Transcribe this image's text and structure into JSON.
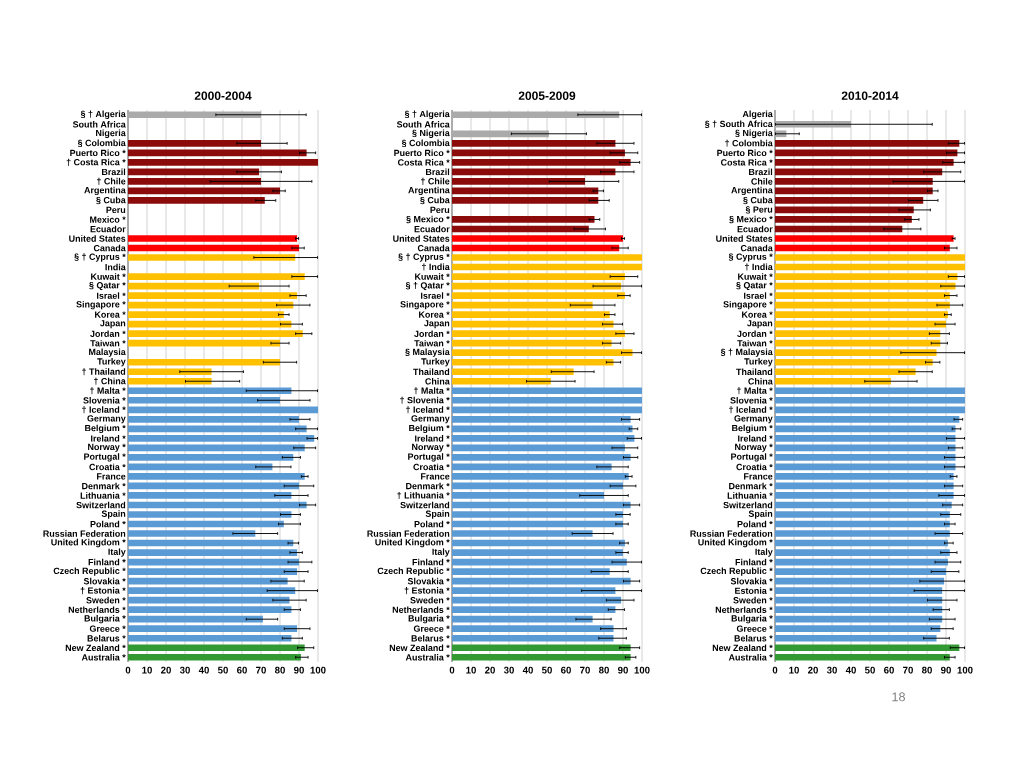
{
  "chart_data": [
    {
      "type": "bar",
      "orientation": "horizontal",
      "title": "2000-2004",
      "grid": "x",
      "xlim": [
        0,
        100
      ],
      "xticks": [
        0,
        10,
        20,
        30,
        40,
        50,
        60,
        70,
        80,
        90,
        100
      ],
      "categories": [
        "§ † Algeria",
        "South Africa",
        "Nigeria",
        "§  Colombia",
        "Puerto Rico *",
        "† Costa Rica *",
        "Brazil",
        "† Chile",
        "Argentina",
        "§  Cuba",
        "Peru",
        "Mexico *",
        "Ecuador",
        "United States",
        "Canada",
        "§ † Cyprus *",
        "India",
        "Kuwait *",
        "§  Qatar *",
        "Israel *",
        "Singapore *",
        "Korea *",
        "Japan",
        "Jordan *",
        "Taiwan *",
        "Malaysia",
        "Turkey",
        "† Thailand",
        "† China",
        "† Malta *",
        "Slovenia *",
        "† Iceland *",
        "Germany",
        "Belgium *",
        "Ireland *",
        "Norway *",
        "Portugal *",
        "Croatia *",
        "France",
        "Denmark *",
        "Lithuania *",
        "Switzerland",
        "Spain",
        "Poland *",
        "Russian Federation",
        "United Kingdom *",
        "Italy",
        "Finland *",
        "Czech Republic *",
        "Slovakia *",
        "† Estonia *",
        "Sweden *",
        "Netherlands *",
        "Bulgaria *",
        "Greece *",
        "Belarus *",
        "New Zealand *",
        "Australia *"
      ],
      "values": [
        70,
        null,
        null,
        70,
        94,
        100,
        69,
        70,
        80,
        72,
        null,
        null,
        null,
        89,
        90,
        88,
        null,
        93,
        69,
        89,
        87,
        82,
        86,
        92,
        80,
        null,
        80,
        44,
        44,
        86,
        80,
        100,
        90,
        94,
        98,
        93,
        87,
        76,
        93,
        90,
        86,
        94,
        86,
        82,
        67,
        87,
        89,
        90,
        89,
        84,
        88,
        85,
        86,
        71,
        89,
        86,
        93,
        91
      ],
      "errors": [
        [
          46,
          94
        ],
        null,
        null,
        [
          57,
          84
        ],
        [
          90,
          99
        ],
        null,
        [
          57,
          81
        ],
        [
          43,
          97
        ],
        [
          76,
          83
        ],
        [
          67,
          78
        ],
        null,
        null,
        null,
        [
          88,
          90
        ],
        [
          86,
          93
        ],
        [
          66,
          100
        ],
        null,
        [
          86,
          100
        ],
        [
          53,
          85
        ],
        [
          85,
          94
        ],
        [
          78,
          96
        ],
        [
          79,
          85
        ],
        [
          80,
          92
        ],
        [
          88,
          97
        ],
        [
          75,
          85
        ],
        null,
        [
          71,
          89
        ],
        [
          27,
          61
        ],
        [
          30,
          59
        ],
        [
          62,
          100
        ],
        [
          68,
          96
        ],
        null,
        [
          85,
          96
        ],
        [
          88,
          100
        ],
        [
          94,
          100
        ],
        [
          87,
          99
        ],
        [
          81,
          91
        ],
        [
          67,
          86
        ],
        [
          91,
          95
        ],
        [
          82,
          98
        ],
        [
          77,
          95
        ],
        [
          90,
          99
        ],
        [
          80,
          91
        ],
        [
          79,
          91
        ],
        [
          55,
          79
        ],
        [
          84,
          90
        ],
        [
          85,
          92
        ],
        [
          84,
          97
        ],
        [
          82,
          95
        ],
        [
          75,
          93
        ],
        [
          73,
          100
        ],
        [
          76,
          94
        ],
        [
          82,
          91
        ],
        [
          62,
          79
        ],
        [
          82,
          96
        ],
        [
          81,
          92
        ],
        [
          89,
          98
        ],
        [
          88,
          95
        ]
      ],
      "colors": [
        "#aaaaaa",
        "#aaaaaa",
        "#aaaaaa",
        "#8b0a0a",
        "#8b0a0a",
        "#8b0a0a",
        "#8b0a0a",
        "#8b0a0a",
        "#8b0a0a",
        "#8b0a0a",
        "#8b0a0a",
        "#8b0a0a",
        "#8b0a0a",
        "#ff0000",
        "#ff0000",
        "#ffc000",
        "#ffc000",
        "#ffc000",
        "#ffc000",
        "#ffc000",
        "#ffc000",
        "#ffc000",
        "#ffc000",
        "#ffc000",
        "#ffc000",
        "#ffc000",
        "#ffc000",
        "#ffc000",
        "#ffc000",
        "#5b9bd5",
        "#5b9bd5",
        "#5b9bd5",
        "#5b9bd5",
        "#5b9bd5",
        "#5b9bd5",
        "#5b9bd5",
        "#5b9bd5",
        "#5b9bd5",
        "#5b9bd5",
        "#5b9bd5",
        "#5b9bd5",
        "#5b9bd5",
        "#5b9bd5",
        "#5b9bd5",
        "#5b9bd5",
        "#5b9bd5",
        "#5b9bd5",
        "#5b9bd5",
        "#5b9bd5",
        "#5b9bd5",
        "#5b9bd5",
        "#5b9bd5",
        "#5b9bd5",
        "#5b9bd5",
        "#5b9bd5",
        "#5b9bd5",
        "#339933",
        "#339933"
      ]
    },
    {
      "type": "bar",
      "orientation": "horizontal",
      "title": "2005-2009",
      "grid": "x",
      "xlim": [
        0,
        100
      ],
      "xticks": [
        0,
        10,
        20,
        30,
        40,
        50,
        60,
        70,
        80,
        90,
        100
      ],
      "categories": [
        "§ † Algeria",
        "South Africa",
        "§  Nigeria",
        "§  Colombia",
        "Puerto Rico *",
        "Costa Rica *",
        "Brazil",
        "† Chile",
        "Argentina",
        "§  Cuba",
        "Peru",
        "§  Mexico *",
        "Ecuador",
        "United States",
        "Canada",
        "§ † Cyprus *",
        "† India",
        "Kuwait *",
        "§ † Qatar *",
        "Israel *",
        "Singapore *",
        "Korea *",
        "Japan",
        "Jordan *",
        "Taiwan *",
        "§  Malaysia",
        "Turkey",
        "Thailand",
        "China",
        "† Malta *",
        "† Slovenia *",
        "† Iceland *",
        "Germany",
        "Belgium *",
        "Ireland *",
        "Norway *",
        "Portugal *",
        "Croatia *",
        "France",
        "Denmark *",
        "† Lithuania *",
        "Switzerland",
        "Spain",
        "Poland *",
        "Russian Federation",
        "United Kingdom *",
        "Italy",
        "Finland *",
        "Czech Republic *",
        "Slovakia *",
        "† Estonia *",
        "Sweden *",
        "Netherlands *",
        "Bulgaria *",
        "Greece *",
        "Belarus *",
        "New Zealand *",
        "Australia *"
      ],
      "values": [
        88,
        null,
        51,
        86,
        91,
        94,
        86,
        70,
        77,
        77,
        null,
        75,
        72,
        90,
        88,
        100,
        100,
        91,
        89,
        91,
        74,
        83,
        85,
        91,
        84,
        95,
        85,
        64,
        52,
        100,
        100,
        100,
        94,
        95,
        96,
        91,
        94,
        84,
        93,
        90,
        80,
        94,
        90,
        90,
        74,
        91,
        90,
        92,
        83,
        94,
        86,
        89,
        86,
        74,
        85,
        85,
        94,
        94
      ],
      "errors": [
        [
          66,
          100
        ],
        null,
        [
          31,
          71
        ],
        [
          76,
          96
        ],
        [
          83,
          98
        ],
        [
          88,
          99
        ],
        [
          78,
          96
        ],
        [
          51,
          88
        ],
        [
          74,
          80
        ],
        [
          72,
          83
        ],
        null,
        [
          72,
          78
        ],
        [
          64,
          81
        ],
        [
          89,
          91
        ],
        [
          84,
          93
        ],
        null,
        null,
        [
          83,
          98
        ],
        [
          74,
          100
        ],
        [
          87,
          94
        ],
        [
          62,
          86
        ],
        [
          80,
          86
        ],
        [
          79,
          90
        ],
        [
          86,
          96
        ],
        [
          79,
          89
        ],
        [
          89,
          100
        ],
        [
          81,
          89
        ],
        [
          52,
          75
        ],
        [
          39,
          65
        ],
        null,
        null,
        null,
        [
          89,
          99
        ],
        [
          93,
          98
        ],
        [
          92,
          100
        ],
        [
          84,
          98
        ],
        [
          90,
          98
        ],
        [
          76,
          93
        ],
        [
          91,
          95
        ],
        [
          83,
          97
        ],
        [
          67,
          93
        ],
        [
          90,
          99
        ],
        [
          86,
          94
        ],
        [
          86,
          93
        ],
        [
          63,
          85
        ],
        [
          88,
          93
        ],
        [
          86,
          93
        ],
        [
          84,
          100
        ],
        [
          73,
          93
        ],
        [
          90,
          99
        ],
        [
          68,
          100
        ],
        [
          81,
          96
        ],
        [
          82,
          91
        ],
        [
          65,
          84
        ],
        [
          78,
          92
        ],
        [
          77,
          92
        ],
        [
          88,
          99
        ],
        [
          91,
          97
        ]
      ],
      "colors": [
        "#aaaaaa",
        "#aaaaaa",
        "#aaaaaa",
        "#8b0a0a",
        "#8b0a0a",
        "#8b0a0a",
        "#8b0a0a",
        "#8b0a0a",
        "#8b0a0a",
        "#8b0a0a",
        "#8b0a0a",
        "#8b0a0a",
        "#8b0a0a",
        "#ff0000",
        "#ff0000",
        "#ffc000",
        "#ffc000",
        "#ffc000",
        "#ffc000",
        "#ffc000",
        "#ffc000",
        "#ffc000",
        "#ffc000",
        "#ffc000",
        "#ffc000",
        "#ffc000",
        "#ffc000",
        "#ffc000",
        "#ffc000",
        "#5b9bd5",
        "#5b9bd5",
        "#5b9bd5",
        "#5b9bd5",
        "#5b9bd5",
        "#5b9bd5",
        "#5b9bd5",
        "#5b9bd5",
        "#5b9bd5",
        "#5b9bd5",
        "#5b9bd5",
        "#5b9bd5",
        "#5b9bd5",
        "#5b9bd5",
        "#5b9bd5",
        "#5b9bd5",
        "#5b9bd5",
        "#5b9bd5",
        "#5b9bd5",
        "#5b9bd5",
        "#5b9bd5",
        "#5b9bd5",
        "#5b9bd5",
        "#5b9bd5",
        "#5b9bd5",
        "#5b9bd5",
        "#5b9bd5",
        "#339933",
        "#339933"
      ]
    },
    {
      "type": "bar",
      "orientation": "horizontal",
      "title": "2010-2014",
      "grid": "x",
      "xlim": [
        0,
        100
      ],
      "xticks": [
        0,
        10,
        20,
        30,
        40,
        50,
        60,
        70,
        80,
        90,
        100
      ],
      "annotations": [
        "18"
      ],
      "categories": [
        "Algeria",
        "§ † South Africa",
        "§  Nigeria",
        "† Colombia",
        "Puerto Rico *",
        "Costa Rica *",
        "Brazil",
        "Chile",
        "Argentina",
        "§  Cuba",
        "§  Peru",
        "§  Mexico *",
        "Ecuador",
        "United States",
        "Canada",
        "§  Cyprus *",
        "† India",
        "Kuwait *",
        "§  Qatar *",
        "Israel *",
        "Singapore *",
        "Korea *",
        "Japan",
        "Jordan *",
        "Taiwan *",
        "§ † Malaysia",
        "Turkey",
        "Thailand",
        "China",
        "† Malta *",
        "Slovenia *",
        "† Iceland *",
        "Germany",
        "Belgium *",
        "Ireland *",
        "Norway *",
        "Portugal *",
        "Croatia *",
        "France",
        "Denmark *",
        "Lithuania *",
        "Switzerland",
        "Spain",
        "Poland *",
        "Russian Federation",
        "United Kingdom *",
        "Italy",
        "Finland *",
        "Czech Republic *",
        "Slovakia *",
        "Estonia *",
        "Sweden *",
        "Netherlands *",
        "Bulgaria *",
        "Greece *",
        "Belarus *",
        "New Zealand *",
        "Australia *"
      ],
      "values": [
        null,
        40,
        6,
        97,
        96,
        94,
        88,
        83,
        83,
        78,
        73,
        72,
        67,
        94,
        92,
        100,
        100,
        96,
        95,
        92,
        92,
        91,
        90,
        87,
        87,
        85,
        83,
        74,
        61,
        100,
        100,
        100,
        97,
        95,
        95,
        95,
        95,
        95,
        94,
        94,
        94,
        93,
        92,
        92,
        92,
        91,
        92,
        91,
        90,
        89,
        88,
        88,
        88,
        88,
        87,
        85,
        97,
        92
      ],
      "errors": [
        null,
        [
          0,
          83
        ],
        [
          0,
          13
        ],
        [
          91,
          100
        ],
        [
          90,
          100
        ],
        [
          88,
          100
        ],
        [
          78,
          98
        ],
        [
          62,
          100
        ],
        [
          80,
          86
        ],
        [
          70,
          86
        ],
        [
          65,
          82
        ],
        [
          68,
          76
        ],
        [
          57,
          77
        ],
        [
          93,
          95
        ],
        [
          89,
          96
        ],
        null,
        null,
        [
          91,
          100
        ],
        [
          87,
          100
        ],
        [
          89,
          96
        ],
        [
          85,
          99
        ],
        [
          89,
          93
        ],
        [
          84,
          95
        ],
        [
          81,
          92
        ],
        [
          82,
          91
        ],
        [
          66,
          100
        ],
        [
          79,
          87
        ],
        [
          65,
          83
        ],
        [
          47,
          75
        ],
        null,
        null,
        null,
        [
          94,
          99
        ],
        [
          93,
          98
        ],
        [
          90,
          100
        ],
        [
          91,
          99
        ],
        [
          89,
          100
        ],
        [
          89,
          100
        ],
        [
          92,
          96
        ],
        [
          89,
          99
        ],
        [
          86,
          100
        ],
        [
          88,
          99
        ],
        [
          87,
          98
        ],
        [
          89,
          95
        ],
        [
          84,
          99
        ],
        [
          89,
          94
        ],
        [
          87,
          96
        ],
        [
          84,
          98
        ],
        [
          82,
          97
        ],
        [
          76,
          100
        ],
        [
          73,
          100
        ],
        [
          80,
          96
        ],
        [
          83,
          92
        ],
        [
          81,
          95
        ],
        [
          82,
          94
        ],
        [
          78,
          92
        ],
        [
          92,
          100
        ],
        [
          89,
          95
        ]
      ],
      "colors": [
        "#aaaaaa",
        "#aaaaaa",
        "#aaaaaa",
        "#8b0a0a",
        "#8b0a0a",
        "#8b0a0a",
        "#8b0a0a",
        "#8b0a0a",
        "#8b0a0a",
        "#8b0a0a",
        "#8b0a0a",
        "#8b0a0a",
        "#8b0a0a",
        "#ff0000",
        "#ff0000",
        "#ffc000",
        "#ffc000",
        "#ffc000",
        "#ffc000",
        "#ffc000",
        "#ffc000",
        "#ffc000",
        "#ffc000",
        "#ffc000",
        "#ffc000",
        "#ffc000",
        "#ffc000",
        "#ffc000",
        "#ffc000",
        "#5b9bd5",
        "#5b9bd5",
        "#5b9bd5",
        "#5b9bd5",
        "#5b9bd5",
        "#5b9bd5",
        "#5b9bd5",
        "#5b9bd5",
        "#5b9bd5",
        "#5b9bd5",
        "#5b9bd5",
        "#5b9bd5",
        "#5b9bd5",
        "#5b9bd5",
        "#5b9bd5",
        "#5b9bd5",
        "#5b9bd5",
        "#5b9bd5",
        "#5b9bd5",
        "#5b9bd5",
        "#5b9bd5",
        "#5b9bd5",
        "#5b9bd5",
        "#5b9bd5",
        "#5b9bd5",
        "#5b9bd5",
        "#5b9bd5",
        "#339933",
        "#339933"
      ]
    }
  ]
}
